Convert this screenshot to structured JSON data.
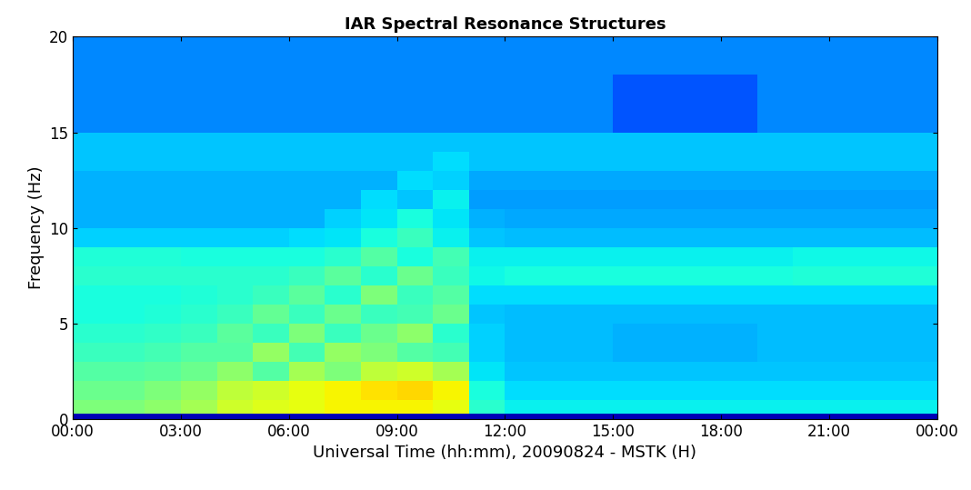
{
  "chart_data": {
    "type": "heatmap",
    "title": "IAR Spectral Resonance Structures",
    "x_label": "Universal Time (hh:mm), 20090824 - MSTK (H)",
    "y_label": "Frequency (Hz)",
    "xlim": [
      0,
      24
    ],
    "ylim": [
      0,
      20
    ],
    "xticks": [
      {
        "value": 0,
        "label": "00:00"
      },
      {
        "value": 3,
        "label": "03:00"
      },
      {
        "value": 6,
        "label": "06:00"
      },
      {
        "value": 9,
        "label": "09:00"
      },
      {
        "value": 12,
        "label": "12:00"
      },
      {
        "value": 15,
        "label": "15:00"
      },
      {
        "value": 18,
        "label": "18:00"
      },
      {
        "value": 21,
        "label": "21:00"
      },
      {
        "value": 24,
        "label": "00:00"
      }
    ],
    "yticks": [
      0,
      5,
      10,
      15,
      20
    ],
    "color": "jet",
    "clim": [
      0,
      10
    ],
    "time_edges": [
      0,
      1,
      2,
      3,
      4,
      5,
      6,
      7,
      8,
      9,
      10,
      11,
      12,
      13,
      14,
      15,
      16,
      17,
      18,
      19,
      20,
      21,
      22,
      23,
      24
    ],
    "freq_edges": [
      0,
      0.3,
      1,
      2,
      3,
      4,
      5,
      6,
      7,
      8,
      9,
      10,
      11,
      12,
      13,
      14,
      15,
      16,
      17,
      18,
      19,
      20
    ],
    "cells": [
      [
        0.5,
        0.5,
        0.5,
        0.5,
        0.5,
        0.5,
        0.5,
        0.5,
        0.5,
        0.5,
        0.5,
        0.5,
        0.5,
        0.5,
        0.5,
        0.5,
        0.5,
        0.5,
        0.5,
        0.5,
        0.5,
        0.5,
        0.5,
        0.5
      ],
      [
        5.0,
        5.0,
        5.2,
        5.5,
        6.0,
        6.2,
        6.3,
        6.5,
        6.5,
        6.5,
        6.3,
        4.0,
        3.6,
        3.6,
        3.6,
        3.6,
        3.6,
        3.6,
        3.6,
        3.6,
        3.6,
        3.6,
        3.6,
        3.6
      ],
      [
        4.8,
        4.8,
        5.0,
        5.3,
        5.8,
        6.0,
        6.3,
        6.5,
        6.7,
        6.8,
        6.5,
        3.8,
        3.4,
        3.4,
        3.4,
        3.4,
        3.4,
        3.4,
        3.4,
        3.4,
        3.4,
        3.4,
        3.4,
        3.4
      ],
      [
        4.5,
        4.5,
        4.6,
        4.8,
        5.2,
        4.5,
        5.5,
        5.0,
        5.8,
        6.0,
        5.5,
        3.5,
        3.2,
        3.2,
        3.2,
        3.2,
        3.2,
        3.2,
        3.2,
        3.2,
        3.2,
        3.2,
        3.2,
        3.2
      ],
      [
        4.2,
        4.2,
        4.3,
        4.5,
        4.5,
        5.3,
        4.3,
        5.3,
        5.0,
        4.5,
        4.3,
        3.3,
        3.1,
        3.1,
        3.1,
        3.0,
        3.0,
        3.0,
        3.0,
        3.1,
        3.1,
        3.1,
        3.1,
        3.1
      ],
      [
        4.0,
        4.0,
        4.1,
        4.2,
        4.6,
        4.2,
        5.0,
        4.2,
        4.8,
        5.2,
        4.0,
        3.3,
        3.1,
        3.1,
        3.1,
        3.0,
        3.0,
        3.0,
        3.0,
        3.1,
        3.1,
        3.1,
        3.1,
        3.1
      ],
      [
        3.8,
        3.8,
        3.9,
        4.0,
        4.2,
        4.7,
        4.2,
        4.8,
        4.2,
        4.3,
        4.8,
        3.2,
        3.1,
        3.1,
        3.1,
        3.1,
        3.1,
        3.1,
        3.1,
        3.1,
        3.1,
        3.1,
        3.1,
        3.1
      ],
      [
        3.8,
        3.8,
        3.8,
        3.9,
        4.0,
        4.2,
        4.6,
        4.0,
        5.0,
        4.2,
        4.5,
        3.4,
        3.4,
        3.4,
        3.4,
        3.4,
        3.4,
        3.4,
        3.4,
        3.4,
        3.4,
        3.4,
        3.4,
        3.4
      ],
      [
        4.0,
        4.0,
        4.0,
        4.0,
        4.0,
        4.0,
        4.2,
        4.6,
        4.0,
        4.8,
        4.2,
        3.7,
        3.8,
        3.8,
        3.8,
        3.8,
        3.8,
        3.8,
        3.8,
        3.8,
        3.9,
        3.9,
        3.9,
        3.9
      ],
      [
        3.9,
        3.9,
        3.9,
        3.8,
        3.8,
        3.8,
        3.8,
        4.0,
        4.5,
        3.8,
        4.3,
        3.6,
        3.6,
        3.6,
        3.6,
        3.6,
        3.6,
        3.6,
        3.6,
        3.6,
        3.7,
        3.7,
        3.7,
        3.7
      ],
      [
        3.3,
        3.3,
        3.3,
        3.3,
        3.3,
        3.3,
        3.4,
        3.5,
        3.8,
        4.2,
        3.6,
        3.2,
        3.1,
        3.1,
        3.1,
        3.1,
        3.1,
        3.1,
        3.1,
        3.1,
        3.1,
        3.1,
        3.1,
        3.1
      ],
      [
        3.0,
        3.0,
        3.0,
        3.0,
        3.0,
        3.0,
        3.0,
        3.3,
        3.5,
        3.8,
        3.5,
        3.0,
        2.9,
        2.9,
        2.9,
        2.9,
        2.9,
        2.9,
        2.9,
        2.9,
        2.9,
        2.9,
        2.9,
        2.9
      ],
      [
        3.0,
        3.0,
        3.0,
        3.0,
        3.0,
        3.0,
        3.0,
        3.0,
        3.4,
        3.2,
        3.6,
        2.8,
        2.8,
        2.8,
        2.8,
        2.8,
        2.8,
        2.8,
        2.8,
        2.8,
        2.8,
        2.8,
        2.8,
        2.8
      ],
      [
        3.0,
        3.0,
        3.0,
        3.0,
        3.0,
        3.0,
        3.0,
        3.0,
        3.0,
        3.4,
        3.3,
        2.9,
        2.9,
        2.9,
        2.9,
        2.9,
        2.9,
        2.9,
        2.9,
        2.9,
        2.9,
        2.9,
        2.9,
        2.9
      ],
      [
        3.2,
        3.2,
        3.2,
        3.2,
        3.2,
        3.2,
        3.2,
        3.2,
        3.2,
        3.2,
        3.4,
        3.2,
        3.2,
        3.2,
        3.2,
        3.2,
        3.2,
        3.2,
        3.2,
        3.2,
        3.2,
        3.2,
        3.2,
        3.2
      ],
      [
        3.2,
        3.2,
        3.2,
        3.2,
        3.2,
        3.2,
        3.2,
        3.2,
        3.2,
        3.2,
        3.2,
        3.2,
        3.2,
        3.2,
        3.2,
        3.2,
        3.2,
        3.2,
        3.2,
        3.2,
        3.2,
        3.2,
        3.2,
        3.2
      ],
      [
        2.6,
        2.6,
        2.6,
        2.6,
        2.6,
        2.6,
        2.6,
        2.6,
        2.6,
        2.6,
        2.6,
        2.6,
        2.6,
        2.6,
        2.6,
        2.1,
        2.1,
        2.1,
        2.1,
        2.6,
        2.6,
        2.6,
        2.6,
        2.6
      ],
      [
        2.6,
        2.6,
        2.6,
        2.6,
        2.6,
        2.6,
        2.6,
        2.6,
        2.6,
        2.6,
        2.6,
        2.6,
        2.6,
        2.6,
        2.6,
        2.1,
        2.1,
        2.1,
        2.1,
        2.6,
        2.6,
        2.6,
        2.6,
        2.6
      ],
      [
        2.6,
        2.6,
        2.6,
        2.6,
        2.6,
        2.6,
        2.6,
        2.6,
        2.6,
        2.6,
        2.6,
        2.6,
        2.6,
        2.6,
        2.6,
        2.1,
        2.1,
        2.1,
        2.1,
        2.6,
        2.6,
        2.6,
        2.6,
        2.6
      ],
      [
        2.6,
        2.6,
        2.6,
        2.6,
        2.6,
        2.6,
        2.6,
        2.6,
        2.6,
        2.6,
        2.6,
        2.6,
        2.6,
        2.6,
        2.6,
        2.6,
        2.6,
        2.6,
        2.6,
        2.6,
        2.6,
        2.6,
        2.6,
        2.6
      ],
      [
        2.6,
        2.6,
        2.6,
        2.6,
        2.6,
        2.6,
        2.6,
        2.6,
        2.6,
        2.6,
        2.6,
        2.6,
        2.6,
        2.6,
        2.6,
        2.6,
        2.6,
        2.6,
        2.6,
        2.6,
        2.6,
        2.6,
        2.6,
        2.6
      ]
    ]
  }
}
